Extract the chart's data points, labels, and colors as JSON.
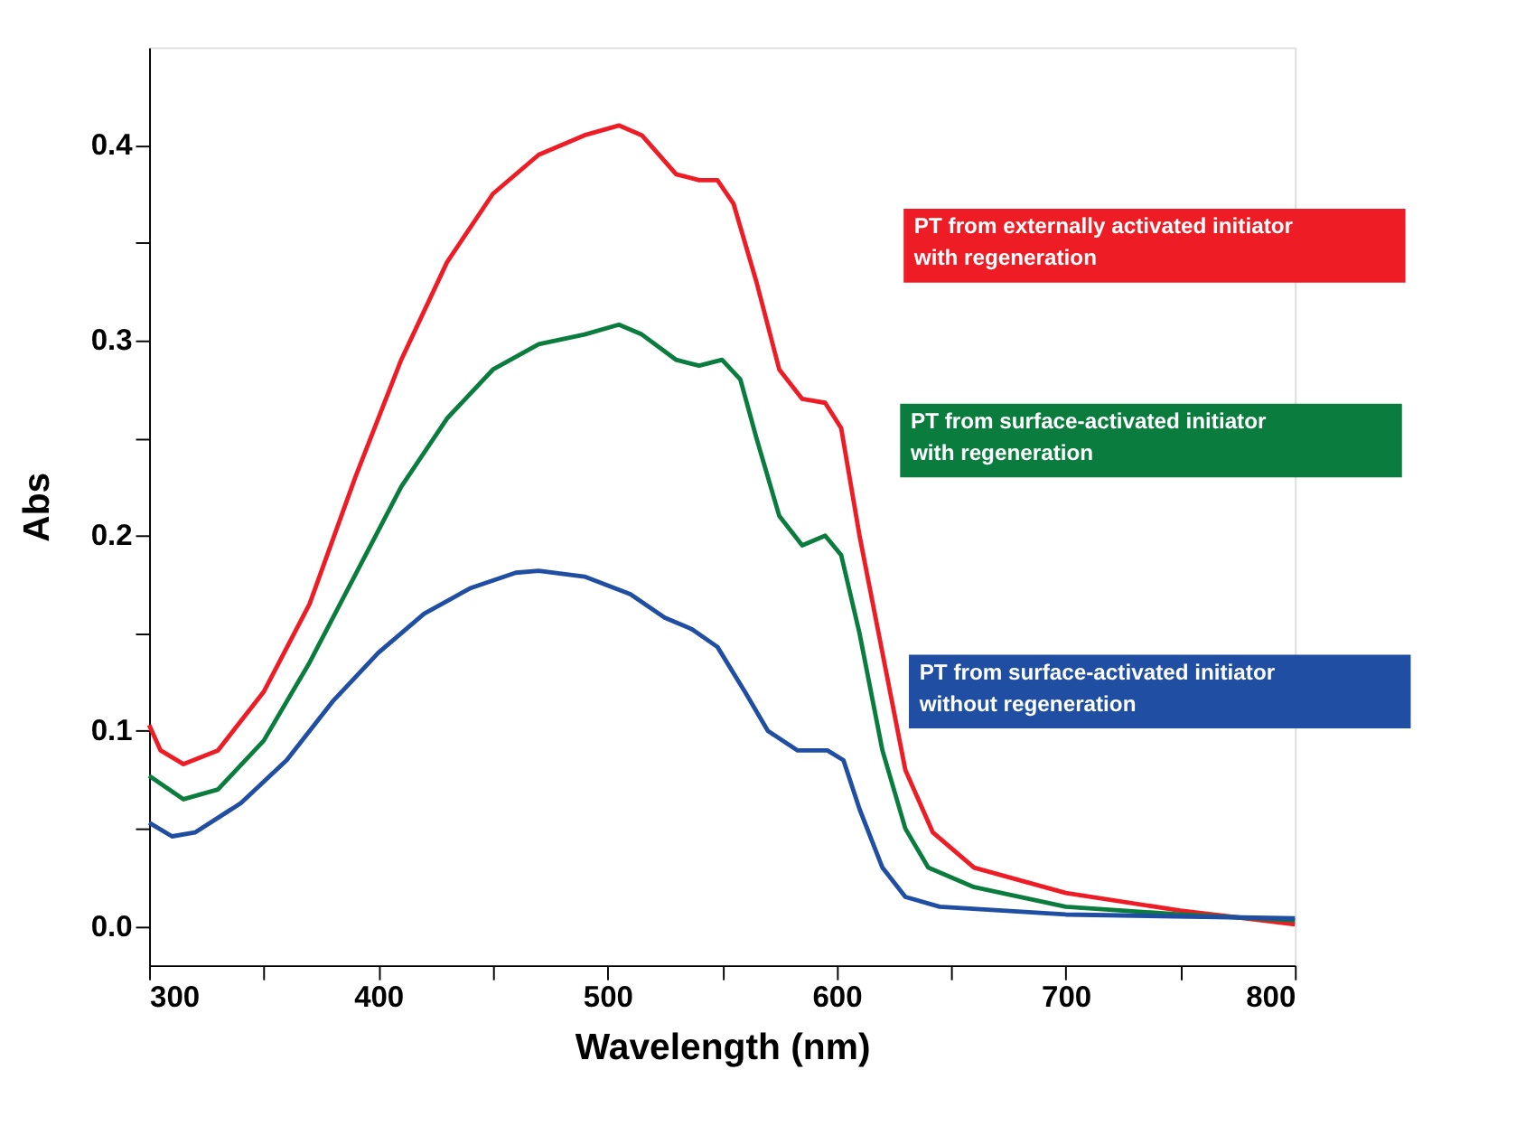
{
  "chart_data": {
    "type": "line",
    "xlabel": "Wavelength (nm)",
    "ylabel": "Abs",
    "xlim": [
      300,
      800
    ],
    "ylim": [
      -0.02,
      0.45
    ],
    "xticks": [
      300,
      {
        "value": 350,
        "label": null
      },
      400,
      {
        "value": 450,
        "label": null
      },
      500,
      {
        "value": 550,
        "label": null
      },
      600,
      {
        "value": 650,
        "label": null
      },
      700,
      {
        "value": 750,
        "label": null
      },
      800
    ],
    "yticks": [
      {
        "value": 0,
        "label": "0.0"
      },
      {
        "value": 0.05,
        "label": null
      },
      0.1,
      {
        "value": 0.15,
        "label": null
      },
      0.2,
      {
        "value": 0.25,
        "label": null
      },
      0.3,
      {
        "value": 0.35,
        "label": null
      },
      0.4
    ],
    "grid": false,
    "marker": "none",
    "line_style": "solid",
    "series": [
      {
        "name": "PT from externally activated initiator with regeneration",
        "color": "#ee1c25",
        "x": [
          300,
          305,
          315,
          330,
          350,
          370,
          390,
          410,
          430,
          450,
          470,
          490,
          505,
          515,
          530,
          540,
          548,
          555,
          565,
          575,
          585,
          595,
          602,
          610,
          620,
          630,
          642,
          660,
          700,
          750,
          800
        ],
        "values": [
          0.103,
          0.09,
          0.083,
          0.09,
          0.12,
          0.165,
          0.23,
          0.29,
          0.34,
          0.375,
          0.395,
          0.405,
          0.41,
          0.405,
          0.385,
          0.382,
          0.382,
          0.37,
          0.33,
          0.285,
          0.27,
          0.268,
          0.255,
          0.2,
          0.14,
          0.08,
          0.048,
          0.03,
          0.017,
          0.008,
          0.001
        ]
      },
      {
        "name": "PT from surface-activated initiator with regeneration",
        "color": "#0a7d3e",
        "x": [
          300,
          315,
          330,
          350,
          370,
          390,
          410,
          430,
          450,
          470,
          490,
          505,
          515,
          530,
          540,
          550,
          558,
          565,
          575,
          585,
          595,
          602,
          610,
          620,
          630,
          640,
          660,
          700,
          750,
          800
        ],
        "values": [
          0.077,
          0.065,
          0.07,
          0.095,
          0.135,
          0.18,
          0.225,
          0.26,
          0.285,
          0.298,
          0.303,
          0.308,
          0.303,
          0.29,
          0.287,
          0.29,
          0.28,
          0.25,
          0.21,
          0.195,
          0.2,
          0.19,
          0.15,
          0.09,
          0.05,
          0.03,
          0.02,
          0.01,
          0.006,
          0.003
        ]
      },
      {
        "name": "PT from surface-activated initiator without regeneration",
        "color": "#1f4ea3",
        "x": [
          300,
          310,
          320,
          340,
          360,
          380,
          400,
          420,
          440,
          460,
          470,
          490,
          510,
          525,
          537,
          548,
          560,
          570,
          583,
          596,
          603,
          610,
          620,
          630,
          645,
          700,
          800
        ],
        "values": [
          0.053,
          0.046,
          0.048,
          0.063,
          0.085,
          0.115,
          0.14,
          0.16,
          0.173,
          0.181,
          0.182,
          0.179,
          0.17,
          0.158,
          0.152,
          0.143,
          0.12,
          0.1,
          0.09,
          0.09,
          0.085,
          0.06,
          0.03,
          0.015,
          0.01,
          0.006,
          0.004
        ]
      }
    ]
  }
}
